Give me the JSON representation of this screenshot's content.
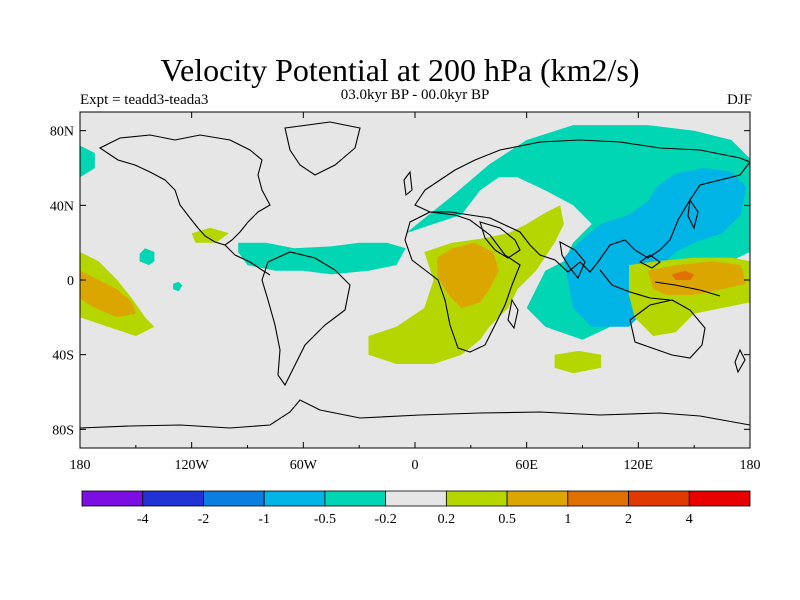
{
  "title": "Velocity Potential at 200 hPa (km2/s)",
  "left_string": "Expt = teadd3-teada3",
  "center_string": "03.0kyr BP - 00.0kyr BP",
  "right_string": "DJF",
  "chart_data": {
    "type": "heatmap",
    "projection": "cylindrical-equidistant",
    "lon_range": [
      -180,
      180
    ],
    "lat_range": [
      -90,
      90
    ],
    "x_ticks": [
      "180",
      "120W",
      "60W",
      "0",
      "60E",
      "120E",
      "180"
    ],
    "x_tick_values": [
      -180,
      -120,
      -60,
      0,
      60,
      120,
      180
    ],
    "y_ticks": [
      "80N",
      "40N",
      "0",
      "40S",
      "80S"
    ],
    "y_tick_values": [
      80,
      40,
      0,
      -40,
      -80
    ],
    "colorbar": {
      "labels": [
        "-4",
        "-2",
        "-1",
        "-0.5",
        "-0.2",
        "0.2",
        "0.5",
        "1",
        "2",
        "4"
      ],
      "colors": [
        "#7b0ee0",
        "#2233d6",
        "#0a7fe0",
        "#00b4e6",
        "#00d6b3",
        "#e6e6e6",
        "#b6d600",
        "#dca600",
        "#e07000",
        "#e03a00",
        "#e60000"
      ]
    },
    "regions": [
      {
        "level": "-0.5",
        "color": "#00d6b3",
        "points": [
          [
            -5,
            25
          ],
          [
            20,
            45
          ],
          [
            40,
            62
          ],
          [
            60,
            75
          ],
          [
            85,
            83
          ],
          [
            125,
            83
          ],
          [
            150,
            80
          ],
          [
            170,
            75
          ],
          [
            180,
            65
          ],
          [
            180,
            15
          ],
          [
            165,
            8
          ],
          [
            150,
            -2
          ],
          [
            135,
            -2
          ],
          [
            120,
            -12
          ],
          [
            105,
            -25
          ],
          [
            90,
            -32
          ],
          [
            70,
            -25
          ],
          [
            60,
            -15
          ],
          [
            65,
            -5
          ],
          [
            70,
            5
          ],
          [
            80,
            10
          ],
          [
            85,
            20
          ],
          [
            95,
            30
          ],
          [
            85,
            40
          ],
          [
            70,
            48
          ],
          [
            55,
            55
          ],
          [
            45,
            55
          ],
          [
            35,
            48
          ],
          [
            25,
            35
          ],
          [
            10,
            30
          ],
          [
            -5,
            25
          ]
        ]
      },
      {
        "level": "-1",
        "color": "#00b4e6",
        "points": [
          [
            80,
            12
          ],
          [
            90,
            22
          ],
          [
            100,
            30
          ],
          [
            115,
            35
          ],
          [
            125,
            42
          ],
          [
            130,
            50
          ],
          [
            140,
            57
          ],
          [
            155,
            60
          ],
          [
            170,
            58
          ],
          [
            178,
            50
          ],
          [
            175,
            35
          ],
          [
            165,
            25
          ],
          [
            150,
            20
          ],
          [
            140,
            15
          ],
          [
            130,
            5
          ],
          [
            125,
            -5
          ],
          [
            125,
            -15
          ],
          [
            115,
            -25
          ],
          [
            95,
            -25
          ],
          [
            85,
            -15
          ],
          [
            82,
            0
          ],
          [
            80,
            12
          ]
        ]
      },
      {
        "level": "-0.5",
        "color": "#00d6b3",
        "points": [
          [
            -95,
            20
          ],
          [
            -80,
            20
          ],
          [
            -65,
            17
          ],
          [
            -45,
            18
          ],
          [
            -30,
            20
          ],
          [
            -15,
            20
          ],
          [
            -5,
            17
          ],
          [
            -10,
            8
          ],
          [
            -25,
            5
          ],
          [
            -45,
            3
          ],
          [
            -60,
            5
          ],
          [
            -75,
            5
          ],
          [
            -90,
            8
          ],
          [
            -95,
            15
          ],
          [
            -95,
            20
          ]
        ]
      },
      {
        "level": "-0.5",
        "color": "#00d6b3",
        "points": [
          [
            -148,
            14
          ],
          [
            -145,
            17
          ],
          [
            -140,
            15
          ],
          [
            -140,
            10
          ],
          [
            -143,
            8
          ],
          [
            -148,
            10
          ],
          [
            -148,
            14
          ]
        ]
      },
      {
        "level": "-0.5",
        "color": "#00d6b3",
        "points": [
          [
            -130,
            -2
          ],
          [
            -127,
            -1
          ],
          [
            -125,
            -3
          ],
          [
            -127,
            -6
          ],
          [
            -130,
            -5
          ],
          [
            -130,
            -2
          ]
        ]
      },
      {
        "level": "-0.5",
        "color": "#00d6b3",
        "points": [
          [
            -180,
            72
          ],
          [
            -172,
            68
          ],
          [
            -172,
            60
          ],
          [
            -180,
            55
          ],
          [
            -180,
            72
          ]
        ]
      },
      {
        "level": "0.5",
        "color": "#b6d600",
        "points": [
          [
            5,
            15
          ],
          [
            20,
            20
          ],
          [
            35,
            22
          ],
          [
            50,
            25
          ],
          [
            60,
            30
          ],
          [
            70,
            36
          ],
          [
            78,
            40
          ],
          [
            80,
            30
          ],
          [
            75,
            20
          ],
          [
            65,
            5
          ],
          [
            55,
            -5
          ],
          [
            50,
            -15
          ],
          [
            40,
            -25
          ],
          [
            35,
            -32
          ],
          [
            25,
            -40
          ],
          [
            10,
            -45
          ],
          [
            -10,
            -45
          ],
          [
            -25,
            -40
          ],
          [
            -25,
            -30
          ],
          [
            -10,
            -25
          ],
          [
            5,
            -15
          ],
          [
            10,
            0
          ],
          [
            5,
            15
          ]
        ]
      },
      {
        "level": "1",
        "color": "#dca600",
        "points": [
          [
            12,
            12
          ],
          [
            20,
            17
          ],
          [
            32,
            20
          ],
          [
            42,
            15
          ],
          [
            45,
            5
          ],
          [
            40,
            -5
          ],
          [
            35,
            -12
          ],
          [
            25,
            -15
          ],
          [
            18,
            -8
          ],
          [
            12,
            2
          ],
          [
            12,
            12
          ]
        ]
      },
      {
        "level": "0.5",
        "color": "#b6d600",
        "points": [
          [
            -120,
            25
          ],
          [
            -110,
            28
          ],
          0,
          [
            -100,
            25
          ],
          [
            -107,
            20
          ],
          [
            -118,
            20
          ],
          [
            -120,
            25
          ]
        ]
      },
      {
        "level": "0.5",
        "color": "#b6d600",
        "points": [
          [
            75,
            -40
          ],
          [
            88,
            -38
          ],
          [
            100,
            -40
          ],
          [
            100,
            -47
          ],
          [
            85,
            -50
          ],
          [
            75,
            -47
          ],
          [
            75,
            -40
          ]
        ]
      },
      {
        "level": "0.5",
        "color": "#b6d600",
        "points": [
          [
            115,
            8
          ],
          [
            130,
            10
          ],
          [
            150,
            12
          ],
          [
            170,
            12
          ],
          [
            180,
            10
          ],
          [
            180,
            -12
          ],
          [
            165,
            -15
          ],
          [
            150,
            -18
          ],
          [
            140,
            -28
          ],
          [
            128,
            -30
          ],
          [
            118,
            -20
          ],
          [
            115,
            -8
          ],
          [
            115,
            8
          ]
        ]
      },
      {
        "level": "1",
        "color": "#dca600",
        "points": [
          [
            125,
            5
          ],
          [
            140,
            8
          ],
          [
            160,
            10
          ],
          [
            175,
            8
          ],
          [
            178,
            -2
          ],
          [
            165,
            -5
          ],
          [
            150,
            -8
          ],
          [
            135,
            -8
          ],
          [
            128,
            -5
          ],
          [
            125,
            5
          ]
        ]
      },
      {
        "level": "2",
        "color": "#e07000",
        "points": [
          [
            138,
            3
          ],
          [
            145,
            5
          ],
          [
            150,
            3
          ],
          [
            148,
            0
          ],
          [
            140,
            0
          ],
          [
            138,
            3
          ]
        ]
      },
      {
        "level": "0.5",
        "color": "#b6d600",
        "points": [
          [
            -180,
            15
          ],
          [
            -170,
            10
          ],
          [
            -160,
            0
          ],
          [
            -152,
            -10
          ],
          [
            -145,
            -20
          ],
          [
            -140,
            -25
          ],
          [
            -150,
            -30
          ],
          [
            -165,
            -25
          ],
          [
            -180,
            -20
          ],
          [
            -180,
            15
          ]
        ]
      },
      {
        "level": "1",
        "color": "#dca600",
        "points": [
          [
            -180,
            5
          ],
          [
            -170,
            0
          ],
          [
            -160,
            -5
          ],
          [
            -152,
            -12
          ],
          [
            -150,
            -18
          ],
          [
            -160,
            -20
          ],
          [
            -172,
            -15
          ],
          [
            -180,
            -10
          ],
          [
            -180,
            5
          ]
        ]
      }
    ]
  }
}
